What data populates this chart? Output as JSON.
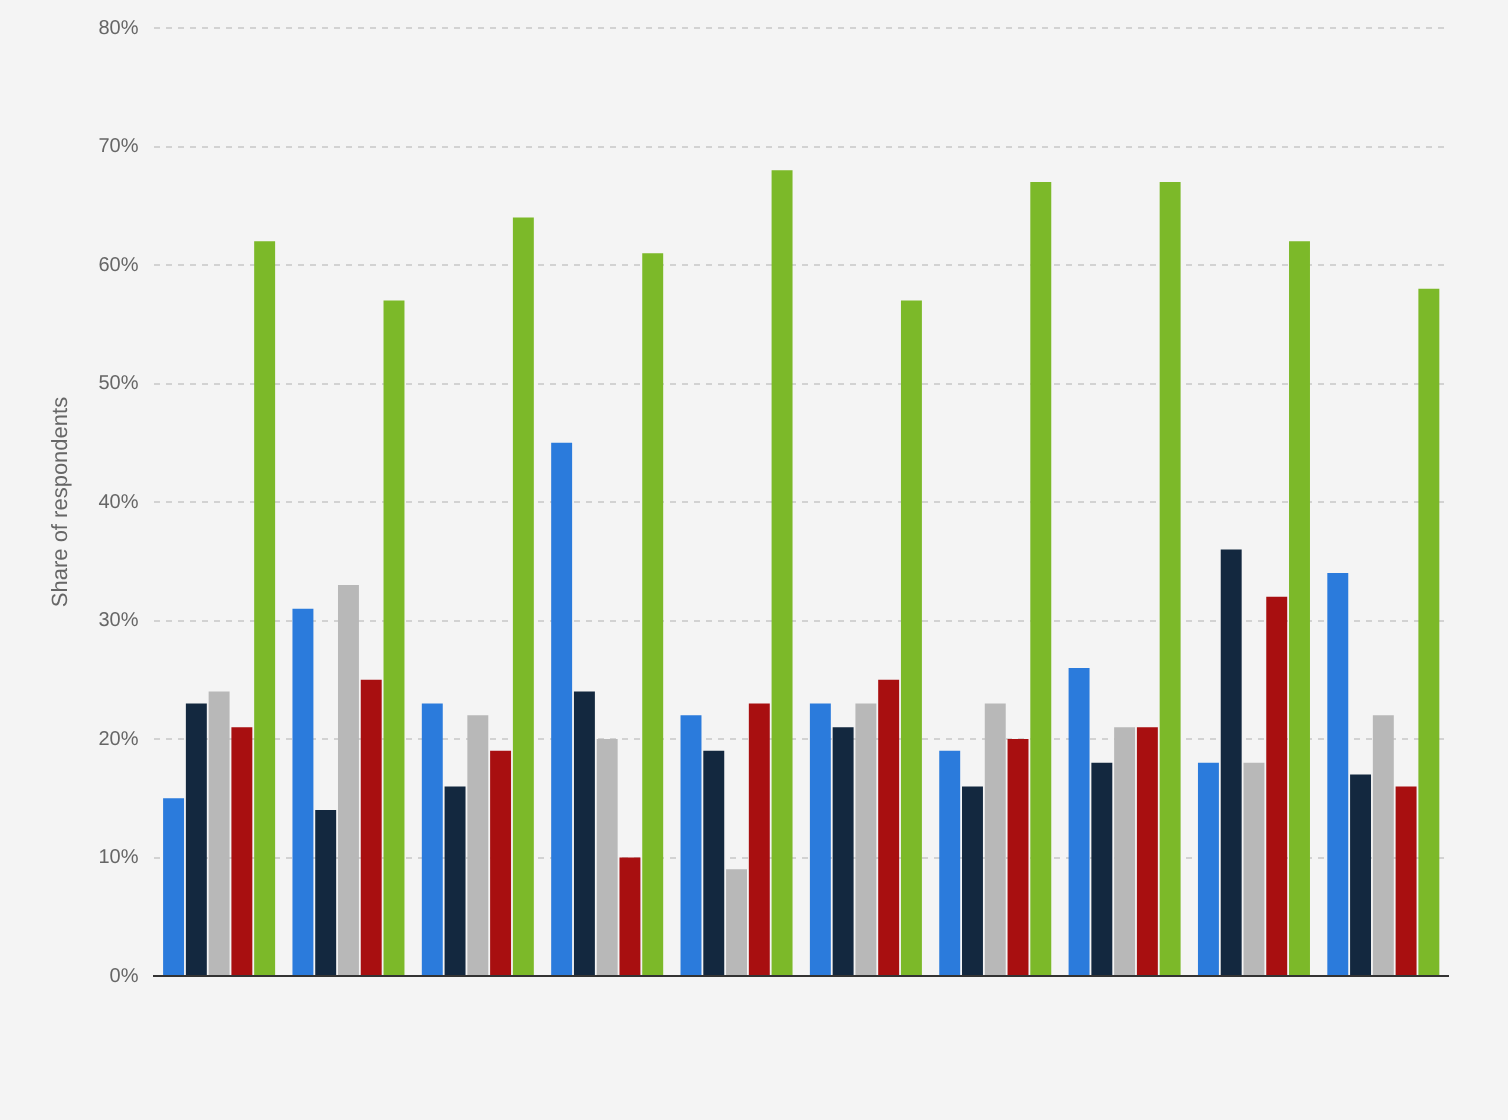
{
  "chart_data": {
    "type": "bar",
    "ylabel": "Share of respondents",
    "categories": [
      null,
      null,
      null,
      null,
      null,
      null,
      null,
      null,
      null,
      null
    ],
    "series": [
      {
        "color": "#2b7bdc",
        "values": [
          15,
          31,
          23,
          45,
          22,
          23,
          19,
          26,
          18,
          34
        ]
      },
      {
        "color": "#13283f",
        "values": [
          23,
          14,
          16,
          24,
          19,
          21,
          16,
          18,
          36,
          17
        ]
      },
      {
        "color": "#b8b8b8",
        "values": [
          24,
          33,
          22,
          20,
          9,
          23,
          23,
          21,
          18,
          22
        ]
      },
      {
        "color": "#a80f10",
        "values": [
          21,
          25,
          19,
          10,
          23,
          25,
          20,
          21,
          32,
          16
        ]
      },
      {
        "color": "#7cb929",
        "values": [
          62,
          57,
          64,
          61,
          68,
          57,
          67,
          67,
          62,
          58
        ]
      }
    ],
    "ylim": [
      0,
      80
    ],
    "yticks": [
      {
        "value": 0,
        "label": "0%"
      },
      {
        "value": 10,
        "label": "10%"
      },
      {
        "value": 20,
        "label": "20%"
      },
      {
        "value": 30,
        "label": "30%"
      },
      {
        "value": 40,
        "label": "40%"
      },
      {
        "value": 50,
        "label": "50%"
      },
      {
        "value": 60,
        "label": "60%"
      },
      {
        "value": 70,
        "label": "70%"
      },
      {
        "value": 80,
        "label": "80%"
      }
    ],
    "grid": "y",
    "legend": false,
    "tick_labels": "y"
  }
}
